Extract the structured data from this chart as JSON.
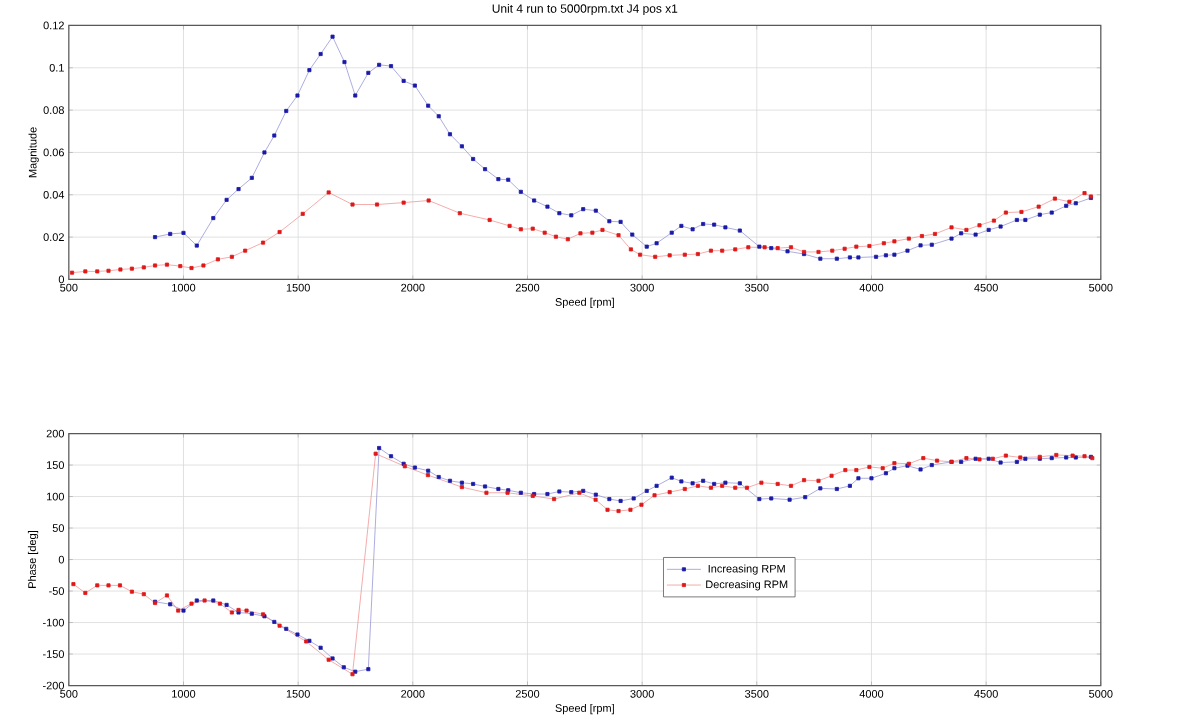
{
  "chart_data": [
    {
      "type": "line",
      "title": "Unit 4 run to 5000rpm.txt  J4 pos x1",
      "xlabel": "Speed [rpm]",
      "ylabel": "Magnitude",
      "xlim": [
        500,
        5000
      ],
      "ylim": [
        0,
        0.12
      ],
      "xticks": [
        500,
        1000,
        1500,
        2000,
        2500,
        3000,
        3500,
        4000,
        4500,
        5000
      ],
      "yticks": [
        0,
        0.02,
        0.04,
        0.06,
        0.08,
        0.1,
        0.12
      ],
      "grid": true,
      "marker": "square",
      "series": [
        {
          "color": "#1a1aa8",
          "x": [
            876,
            942,
            1000,
            1058,
            1130,
            1188,
            1240,
            1298,
            1353,
            1396,
            1448,
            1497,
            1549,
            1598,
            1650,
            1702,
            1749,
            1806,
            1853,
            1905,
            1960,
            2009,
            2067,
            2113,
            2162,
            2214,
            2263,
            2315,
            2373,
            2416,
            2471,
            2529,
            2587,
            2639,
            2691,
            2743,
            2798,
            2857,
            2906,
            2957,
            3020,
            3063,
            3129,
            3171,
            3220,
            3266,
            3314,
            3363,
            3426,
            3511,
            3563,
            3634,
            3706,
            3777,
            3849,
            3906,
            3943,
            4020,
            4063,
            4100,
            4157,
            4214,
            4263,
            4349,
            4391,
            4454,
            4511,
            4563,
            4634,
            4671,
            4734,
            4786,
            4849,
            4891,
            4957
          ],
          "values": [
            0.02,
            0.0215,
            0.022,
            0.016,
            0.029,
            0.0376,
            0.0427,
            0.048,
            0.06,
            0.068,
            0.0796,
            0.0869,
            0.0989,
            0.1065,
            0.1147,
            0.1027,
            0.0869,
            0.0976,
            0.1014,
            0.1008,
            0.0938,
            0.0916,
            0.0821,
            0.0771,
            0.0686,
            0.0629,
            0.0569,
            0.0521,
            0.0474,
            0.0471,
            0.0414,
            0.0373,
            0.0344,
            0.0313,
            0.0303,
            0.0332,
            0.0325,
            0.0275,
            0.0272,
            0.0212,
            0.0155,
            0.0171,
            0.0221,
            0.0253,
            0.0237,
            0.0262,
            0.0259,
            0.0246,
            0.0231,
            0.0155,
            0.0148,
            0.0133,
            0.012,
            0.0098,
            0.0098,
            0.0104,
            0.0104,
            0.0107,
            0.0114,
            0.0117,
            0.0136,
            0.0161,
            0.0164,
            0.0193,
            0.0218,
            0.0212,
            0.0234,
            0.025,
            0.0281,
            0.0281,
            0.0306,
            0.0316,
            0.0348,
            0.036,
            0.0385
          ]
        },
        {
          "color": "#e01818",
          "x": [
            514,
            572,
            624,
            673,
            725,
            775,
            827,
            876,
            928,
            986,
            1035,
            1087,
            1150,
            1211,
            1269,
            1347,
            1419,
            1520,
            1633,
            1737,
            1844,
            1960,
            2069,
            2205,
            2335,
            2422,
            2471,
            2523,
            2575,
            2624,
            2676,
            2731,
            2783,
            2827,
            2897,
            2951,
            2991,
            3057,
            3120,
            3186,
            3243,
            3300,
            3349,
            3406,
            3463,
            3534,
            3591,
            3649,
            3706,
            3769,
            3829,
            3883,
            3934,
            3991,
            4054,
            4100,
            4163,
            4220,
            4277,
            4349,
            4414,
            4471,
            4534,
            4586,
            4654,
            4729,
            4800,
            4863,
            4929,
            4957
          ],
          "values": [
            0.0032,
            0.0038,
            0.0038,
            0.0041,
            0.0047,
            0.0051,
            0.0057,
            0.0066,
            0.007,
            0.0063,
            0.0054,
            0.0066,
            0.0095,
            0.0107,
            0.0136,
            0.0174,
            0.0224,
            0.031,
            0.0411,
            0.0354,
            0.0354,
            0.0363,
            0.0373,
            0.0313,
            0.0281,
            0.0253,
            0.0237,
            0.024,
            0.0221,
            0.0202,
            0.019,
            0.0218,
            0.0221,
            0.0234,
            0.0209,
            0.0142,
            0.0117,
            0.0107,
            0.0114,
            0.0117,
            0.012,
            0.0136,
            0.0136,
            0.0142,
            0.0152,
            0.0152,
            0.0148,
            0.0152,
            0.013,
            0.013,
            0.0136,
            0.0145,
            0.0155,
            0.0158,
            0.0171,
            0.018,
            0.0193,
            0.0205,
            0.0215,
            0.0246,
            0.0234,
            0.0256,
            0.0278,
            0.0316,
            0.0319,
            0.0344,
            0.0382,
            0.0367,
            0.0408,
            0.0392
          ]
        }
      ]
    },
    {
      "type": "line",
      "xlabel": "Speed [rpm]",
      "ylabel": "Phase [deg]",
      "xlim": [
        500,
        5000
      ],
      "ylim": [
        -200,
        200
      ],
      "xticks": [
        500,
        1000,
        1500,
        2000,
        2500,
        3000,
        3500,
        4000,
        4500,
        5000
      ],
      "yticks": [
        -200,
        -150,
        -100,
        -50,
        0,
        50,
        100,
        150,
        200
      ],
      "grid": true,
      "marker": "square",
      "legend": "center",
      "series": [
        {
          "name": "Increasing RPM",
          "color": "#1a1aa8",
          "x": [
            876,
            942,
            1000,
            1058,
            1130,
            1188,
            1240,
            1298,
            1353,
            1396,
            1448,
            1497,
            1549,
            1598,
            1650,
            1699,
            1749,
            1806,
            1853,
            1905,
            1960,
            2009,
            2067,
            2113,
            2162,
            2214,
            2263,
            2315,
            2373,
            2416,
            2471,
            2529,
            2587,
            2639,
            2691,
            2743,
            2798,
            2857,
            2906,
            2963,
            3020,
            3063,
            3129,
            3171,
            3220,
            3266,
            3314,
            3363,
            3426,
            3511,
            3563,
            3643,
            3711,
            3777,
            3849,
            3906,
            3943,
            4000,
            4063,
            4100,
            4157,
            4214,
            4263,
            4349,
            4391,
            4454,
            4511,
            4563,
            4634,
            4671,
            4734,
            4786,
            4849,
            4891,
            4957
          ],
          "values": [
            -67,
            -71,
            -81,
            -65,
            -65,
            -72,
            -84,
            -86,
            -90,
            -99,
            -110,
            -119,
            -129,
            -140,
            -157,
            -171,
            -178,
            -174,
            177,
            164,
            152,
            146,
            141,
            131,
            125,
            122,
            120,
            116,
            112,
            110,
            106,
            104,
            104,
            108,
            107,
            109,
            103,
            96,
            93,
            97,
            109,
            117,
            130,
            124,
            121,
            125,
            120,
            122,
            121,
            96,
            97,
            95,
            99,
            113,
            112,
            117,
            129,
            129,
            137,
            145,
            149,
            143,
            150,
            155,
            155,
            160,
            160,
            154,
            155,
            160,
            160,
            161,
            162,
            162,
            163
          ]
        },
        {
          "name": "Decreasing RPM",
          "color": "#e01818",
          "x": [
            520,
            572,
            624,
            673,
            723,
            775,
            827,
            876,
            928,
            977,
            1035,
            1092,
            1159,
            1211,
            1240,
            1275,
            1347,
            1419,
            1535,
            1633,
            1737,
            1838,
            1965,
            2066,
            2214,
            2321,
            2413,
            2523,
            2616,
            2726,
            2797,
            2849,
            2897,
            2949,
            2997,
            3054,
            3120,
            3186,
            3243,
            3300,
            3349,
            3406,
            3457,
            3520,
            3591,
            3649,
            3706,
            3769,
            3826,
            3886,
            3934,
            3991,
            4049,
            4100,
            4163,
            4226,
            4286,
            4349,
            4414,
            4471,
            4529,
            4586,
            4649,
            4734,
            4806,
            4877,
            4929,
            4963
          ],
          "values": [
            -39,
            -53,
            -41,
            -41,
            -41,
            -51,
            -55,
            -69,
            -57,
            -81,
            -70,
            -65,
            -70,
            -84,
            -80,
            -81,
            -87,
            -105,
            -130,
            -159,
            -182,
            168,
            148,
            134,
            115,
            106,
            106,
            101,
            96,
            106,
            95,
            79,
            77,
            79,
            87,
            102,
            107,
            112,
            117,
            114,
            117,
            114,
            114,
            122,
            120,
            117,
            126,
            125,
            133,
            142,
            142,
            147,
            145,
            153,
            152,
            161,
            157,
            155,
            161,
            159,
            160,
            165,
            162,
            163,
            166,
            165,
            164,
            161
          ]
        }
      ]
    }
  ]
}
